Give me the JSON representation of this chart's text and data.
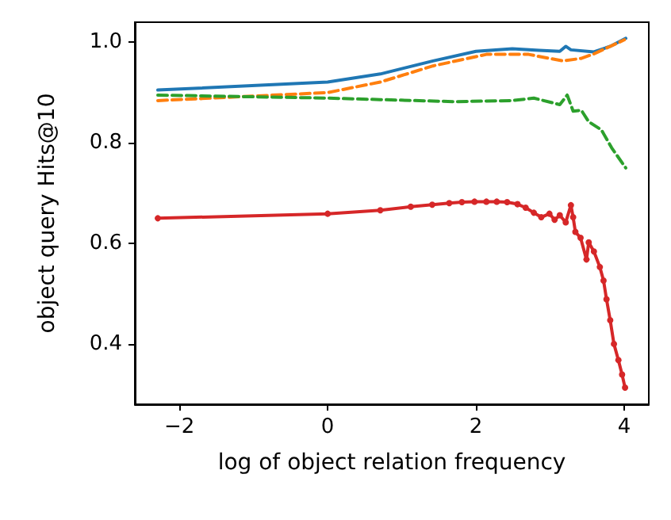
{
  "chart_data": {
    "type": "line",
    "xlabel": "log of object relation frequency",
    "ylabel": "object query Hits@10",
    "xlim": [
      -2.6,
      4.33
    ],
    "ylim": [
      0.28,
      1.04
    ],
    "xticks": [
      {
        "value": -2,
        "label": "−2"
      },
      0,
      2,
      4
    ],
    "yticks": [
      0.4,
      0.6,
      0.8,
      {
        "value": 1,
        "label": "1.0"
      }
    ],
    "grid": false,
    "series": [
      {
        "color": "#1f77b4",
        "line_style": "solid",
        "marker": "none",
        "x": [
          -2.29,
          0,
          0.71,
          1.42,
          2.0,
          2.49,
          2.85,
          3.13,
          3.21,
          3.28,
          3.59,
          3.81,
          4.02
        ],
        "values": [
          0.905,
          0.921,
          0.937,
          0.963,
          0.982,
          0.987,
          0.984,
          0.982,
          0.992,
          0.985,
          0.981,
          0.992,
          1.008
        ]
      },
      {
        "color": "#ff7f0e",
        "line_style": "dashed",
        "marker": "none",
        "x": [
          -2.29,
          0,
          0.71,
          1.42,
          2.14,
          2.71,
          2.99,
          3.17,
          3.42,
          3.59,
          3.81,
          4.0
        ],
        "values": [
          0.884,
          0.9,
          0.921,
          0.953,
          0.976,
          0.976,
          0.968,
          0.963,
          0.968,
          0.977,
          0.992,
          1.005
        ]
      },
      {
        "color": "#2ca02c",
        "line_style": "dashed",
        "marker": "none",
        "x": [
          -2.29,
          0,
          0.71,
          1.71,
          2.49,
          2.78,
          3.13,
          3.23,
          3.31,
          3.42,
          3.52,
          3.69,
          3.83,
          4.02
        ],
        "values": [
          0.895,
          0.889,
          0.886,
          0.882,
          0.884,
          0.889,
          0.876,
          0.895,
          0.863,
          0.865,
          0.842,
          0.826,
          0.79,
          0.75
        ]
      },
      {
        "color": "#d62728",
        "line_style": "solid",
        "marker": "circle",
        "x": [
          -2.29,
          0,
          0.71,
          1.12,
          1.41,
          1.64,
          1.81,
          1.98,
          2.14,
          2.28,
          2.42,
          2.56,
          2.67,
          2.78,
          2.88,
          2.99,
          3.06,
          3.13,
          3.21,
          3.28,
          3.31,
          3.34,
          3.41,
          3.49,
          3.52,
          3.59,
          3.67,
          3.72,
          3.76,
          3.81,
          3.86,
          3.92,
          3.97,
          4.01
        ],
        "values": [
          0.65,
          0.659,
          0.666,
          0.673,
          0.677,
          0.68,
          0.682,
          0.683,
          0.683,
          0.683,
          0.682,
          0.678,
          0.671,
          0.661,
          0.652,
          0.659,
          0.647,
          0.656,
          0.642,
          0.676,
          0.652,
          0.623,
          0.611,
          0.568,
          0.602,
          0.584,
          0.553,
          0.526,
          0.489,
          0.447,
          0.4,
          0.368,
          0.339,
          0.313
        ]
      }
    ]
  }
}
